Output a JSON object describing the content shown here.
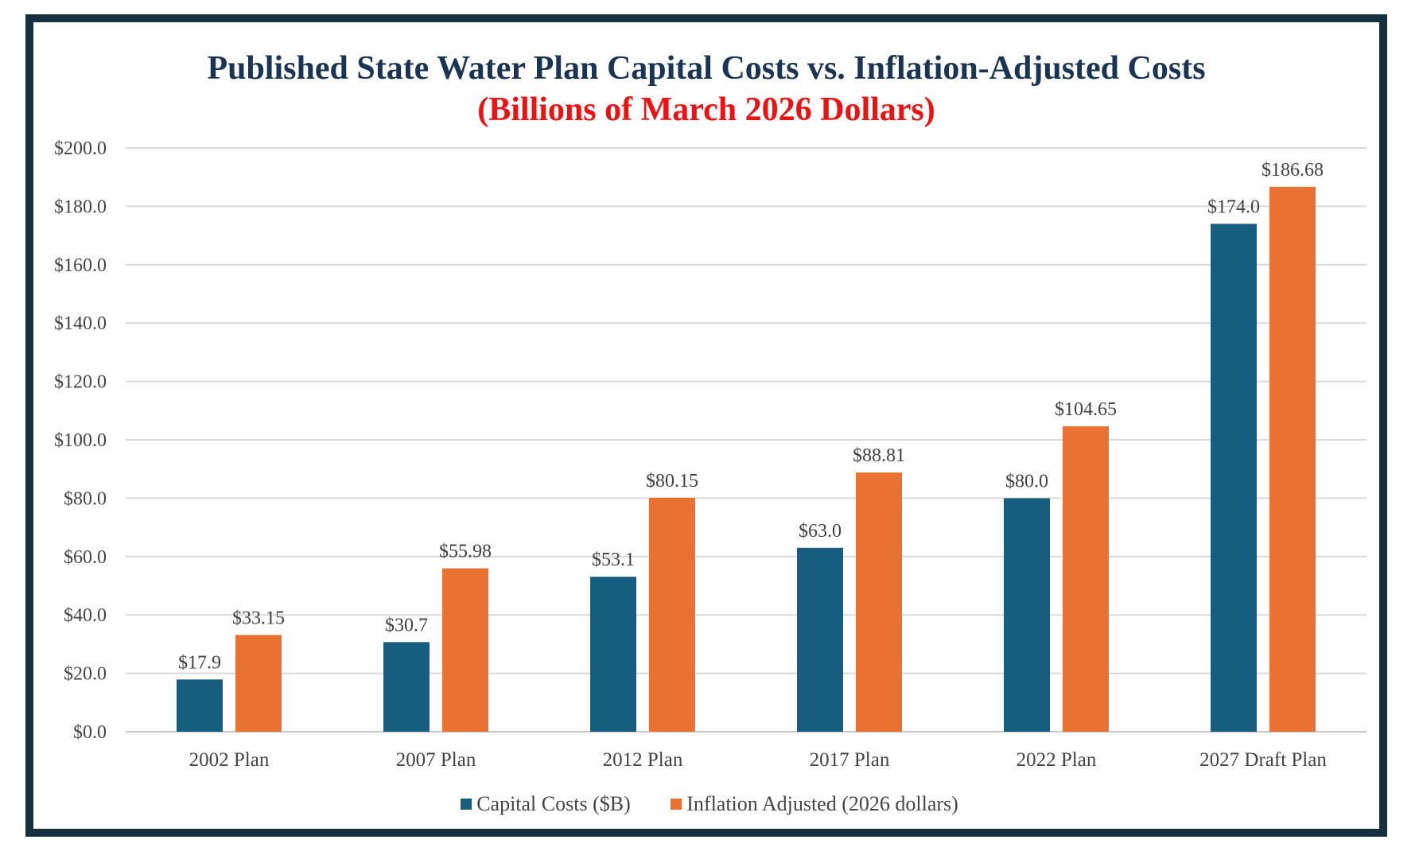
{
  "chart_data": {
    "type": "bar",
    "title": "Published State Water Plan Capital Costs vs. Inflation-Adjusted Costs",
    "subtitle": "(Billions of March 2026 Dollars)",
    "categories": [
      "2002 Plan",
      "2007 Plan",
      "2012 Plan",
      "2017 Plan",
      "2022 Plan",
      "2027 Draft Plan"
    ],
    "series": [
      {
        "name": "Capital Costs ($B)",
        "color": "#165e80",
        "values": [
          17.9,
          30.7,
          53.1,
          63.0,
          80.0,
          174.0
        ],
        "labels": [
          "$17.9",
          "$30.7",
          "$53.1",
          "$63.0",
          "$80.0",
          "$174.0"
        ]
      },
      {
        "name": "Inflation Adjusted (2026 dollars)",
        "color": "#e97132",
        "values": [
          33.15,
          55.98,
          80.15,
          88.81,
          104.65,
          186.68
        ],
        "labels": [
          "$33.15",
          "$55.98",
          "$80.15",
          "$88.81",
          "$104.65",
          "$186.68"
        ]
      }
    ],
    "ylim": [
      0,
      200
    ],
    "yticks": [
      0,
      20,
      40,
      60,
      80,
      100,
      120,
      140,
      160,
      180,
      200
    ],
    "ytick_labels": [
      "$0.0",
      "$20.0",
      "$40.0",
      "$60.0",
      "$80.0",
      "$100.0",
      "$120.0",
      "$140.0",
      "$160.0",
      "$180.0",
      "$200.0"
    ],
    "grid": true,
    "legend_position": "bottom"
  },
  "colors": {
    "title": "#1a3553",
    "subtitle": "#ee1111",
    "frame": "#17303f",
    "grid": "#d9d9d9"
  }
}
